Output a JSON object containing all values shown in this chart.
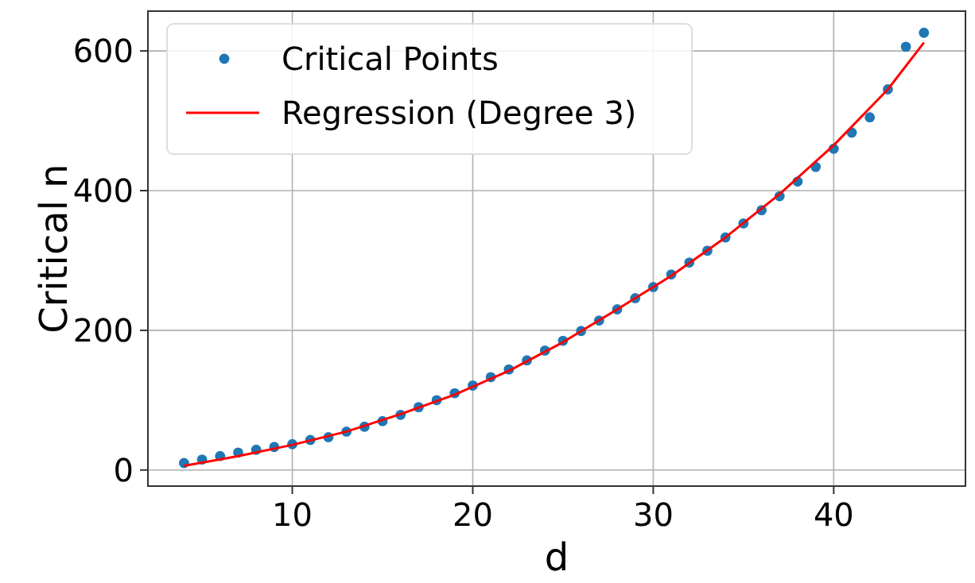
{
  "chart_data": {
    "type": "scatter",
    "xlabel": "d",
    "ylabel": "Critical n",
    "xlim": [
      2,
      47.3
    ],
    "ylim": [
      -23,
      657
    ],
    "xticks": [
      10,
      20,
      30,
      40
    ],
    "yticks": [
      0,
      200,
      400,
      600
    ],
    "grid": true,
    "legend": "top left",
    "series": [
      {
        "name": "Critical Points",
        "marker": "circle",
        "color": "#1f77b4",
        "x": [
          4,
          5,
          6,
          7,
          8,
          9,
          10,
          11,
          12,
          13,
          14,
          15,
          16,
          17,
          18,
          19,
          20,
          21,
          22,
          23,
          24,
          25,
          26,
          27,
          28,
          29,
          30,
          31,
          32,
          33,
          34,
          35,
          36,
          37,
          38,
          39,
          40,
          41,
          42,
          43,
          44,
          45
        ],
        "values": [
          10,
          15,
          20,
          25,
          29,
          33,
          37,
          43,
          47,
          55,
          62,
          70,
          79,
          90,
          100,
          110,
          121,
          133,
          144,
          157,
          171,
          185,
          199,
          214,
          230,
          246,
          262,
          280,
          297,
          314,
          333,
          353,
          372,
          392,
          413,
          434,
          460,
          483,
          505,
          545,
          606,
          626
        ]
      },
      {
        "name": "Regression (Degree 3)",
        "type": "line",
        "marker": "none",
        "line_style": "solid",
        "color": "#ff0000",
        "x": [
          4,
          7,
          10,
          13,
          16,
          19,
          22,
          25,
          28,
          31,
          34,
          37,
          40,
          43,
          45
        ],
        "values": [
          6,
          20,
          36,
          55,
          80,
          108,
          142,
          183,
          230,
          278,
          333,
          395,
          465,
          545,
          612
        ]
      }
    ]
  }
}
